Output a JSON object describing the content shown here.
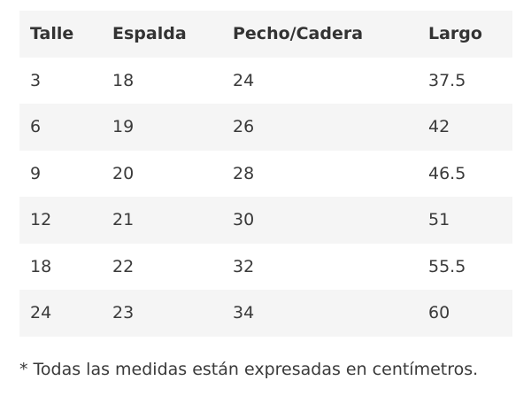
{
  "table": {
    "headers": [
      "Talle",
      "Espalda",
      "Pecho/Cadera",
      "Largo"
    ],
    "rows": [
      [
        "3",
        "18",
        "24",
        "37.5"
      ],
      [
        "6",
        "19",
        "26",
        "42"
      ],
      [
        "9",
        "20",
        "28",
        "46.5"
      ],
      [
        "12",
        "21",
        "30",
        "51"
      ],
      [
        "18",
        "22",
        "32",
        "55.5"
      ],
      [
        "24",
        "23",
        "34",
        "60"
      ]
    ]
  },
  "footnote": "* Todas las medidas están expresadas en centímetros.",
  "colors": {
    "row_stripe": "#f5f5f5",
    "text": "#333333"
  }
}
